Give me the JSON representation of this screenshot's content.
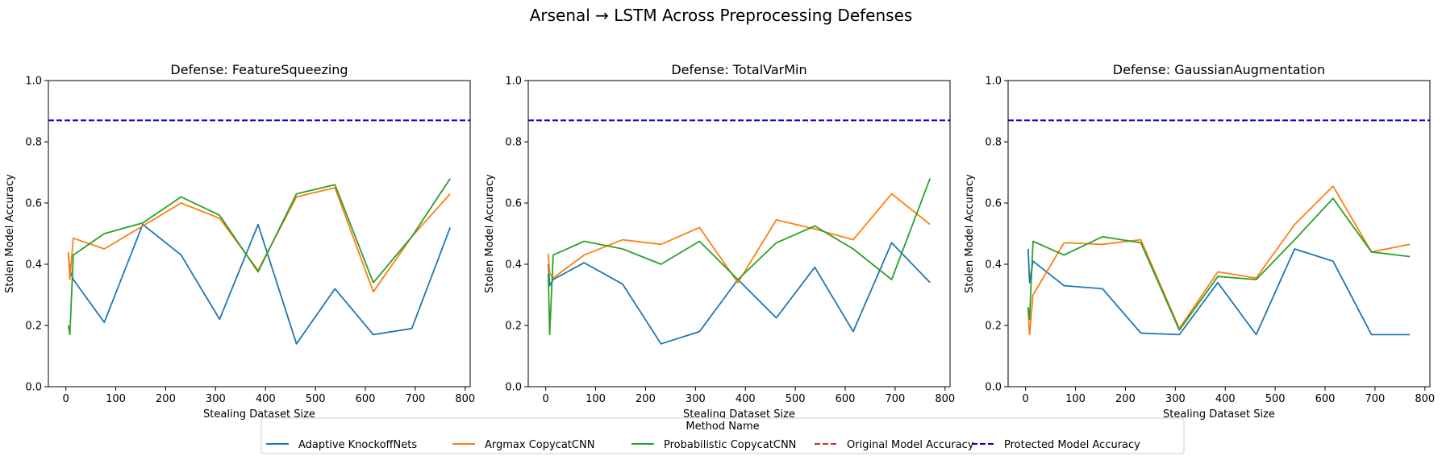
{
  "figure": {
    "suptitle": "Arsenal → LSTM Across Preprocessing Defenses"
  },
  "colors": {
    "adaptive": "#1f77b4",
    "argmax": "#ff7f0e",
    "probabilistic": "#2ca02c",
    "original": "#d62728",
    "protected": "#0000cc"
  },
  "legend": {
    "title": "Method Name",
    "entries": [
      {
        "label": "Adaptive KnockoffNets",
        "color": "#1f77b4",
        "style": "solid"
      },
      {
        "label": "Argmax CopycatCNN",
        "color": "#ff7f0e",
        "style": "solid"
      },
      {
        "label": "Probabilistic CopycatCNN",
        "color": "#2ca02c",
        "style": "solid"
      },
      {
        "label": "Original Model Accuracy",
        "color": "#d62728",
        "style": "dashed"
      },
      {
        "label": "Protected Model Accuracy",
        "color": "#0000cc",
        "style": "dashed"
      }
    ]
  },
  "chart_data": [
    {
      "type": "line",
      "title": "Defense: FeatureSqueezing",
      "xlabel": "Stealing Dataset Size",
      "ylabel": "Stolen Model Accuracy",
      "xlim": [
        -35,
        810
      ],
      "ylim": [
        0.0,
        1.0
      ],
      "xticks": [
        0,
        100,
        200,
        300,
        400,
        500,
        600,
        700,
        800
      ],
      "yticks": [
        0.0,
        0.2,
        0.4,
        0.6,
        0.8,
        1.0
      ],
      "x": [
        5,
        8,
        15,
        77,
        154,
        231,
        308,
        385,
        462,
        539,
        616,
        693,
        770
      ],
      "series": [
        {
          "name": "Adaptive KnockoffNets",
          "values": [
            0.43,
            0.38,
            0.35,
            0.21,
            0.53,
            0.43,
            0.22,
            0.53,
            0.14,
            0.32,
            0.17,
            0.19,
            0.52
          ]
        },
        {
          "name": "Argmax CopycatCNN",
          "values": [
            0.44,
            0.35,
            0.485,
            0.45,
            0.525,
            0.6,
            0.55,
            0.38,
            0.62,
            0.65,
            0.31,
            0.49,
            0.63
          ]
        },
        {
          "name": "Probabilistic CopycatCNN",
          "values": [
            0.2,
            0.17,
            0.43,
            0.5,
            0.535,
            0.62,
            0.56,
            0.375,
            0.63,
            0.66,
            0.34,
            0.49,
            0.68
          ]
        }
      ],
      "hlines": [
        {
          "name": "Protected Model Accuracy",
          "y": 0.87
        }
      ]
    },
    {
      "type": "line",
      "title": "Defense: TotalVarMin",
      "xlabel": "Stealing Dataset Size",
      "ylabel": "Stolen Model Accuracy",
      "xlim": [
        -35,
        810
      ],
      "ylim": [
        0.0,
        1.0
      ],
      "xticks": [
        0,
        100,
        200,
        300,
        400,
        500,
        600,
        700,
        800
      ],
      "yticks": [
        0.0,
        0.2,
        0.4,
        0.6,
        0.8,
        1.0
      ],
      "x": [
        5,
        8,
        15,
        77,
        154,
        231,
        308,
        385,
        462,
        539,
        616,
        693,
        770
      ],
      "series": [
        {
          "name": "Adaptive KnockoffNets",
          "values": [
            0.4,
            0.33,
            0.35,
            0.405,
            0.335,
            0.14,
            0.18,
            0.35,
            0.225,
            0.39,
            0.18,
            0.47,
            0.34
          ]
        },
        {
          "name": "Argmax CopycatCNN",
          "values": [
            0.435,
            0.37,
            0.355,
            0.43,
            0.48,
            0.465,
            0.52,
            0.34,
            0.545,
            0.515,
            0.48,
            0.63,
            0.53
          ]
        },
        {
          "name": "Probabilistic CopycatCNN",
          "values": [
            0.37,
            0.17,
            0.43,
            0.475,
            0.45,
            0.4,
            0.475,
            0.35,
            0.47,
            0.525,
            0.45,
            0.35,
            0.68
          ]
        }
      ],
      "hlines": [
        {
          "name": "Protected Model Accuracy",
          "y": 0.87
        }
      ]
    },
    {
      "type": "line",
      "title": "Defense: GaussianAugmentation",
      "xlabel": "Stealing Dataset Size",
      "ylabel": "Stolen Model Accuracy",
      "xlim": [
        -35,
        810
      ],
      "ylim": [
        0.0,
        1.0
      ],
      "xticks": [
        0,
        100,
        200,
        300,
        400,
        500,
        600,
        700,
        800
      ],
      "yticks": [
        0.0,
        0.2,
        0.4,
        0.6,
        0.8,
        1.0
      ],
      "x": [
        5,
        8,
        15,
        77,
        154,
        231,
        308,
        385,
        462,
        539,
        616,
        693,
        770
      ],
      "series": [
        {
          "name": "Adaptive KnockoffNets",
          "values": [
            0.45,
            0.34,
            0.41,
            0.33,
            0.32,
            0.175,
            0.17,
            0.34,
            0.17,
            0.45,
            0.41,
            0.17,
            0.17
          ]
        },
        {
          "name": "Argmax CopycatCNN",
          "values": [
            0.25,
            0.17,
            0.3,
            0.47,
            0.465,
            0.48,
            0.19,
            0.375,
            0.355,
            0.53,
            0.655,
            0.44,
            0.465
          ]
        },
        {
          "name": "Probabilistic CopycatCNN",
          "values": [
            0.26,
            0.22,
            0.475,
            0.43,
            0.49,
            0.47,
            0.185,
            0.36,
            0.35,
            0.48,
            0.615,
            0.44,
            0.425
          ]
        }
      ],
      "hlines": [
        {
          "name": "Protected Model Accuracy",
          "y": 0.87
        }
      ]
    }
  ]
}
